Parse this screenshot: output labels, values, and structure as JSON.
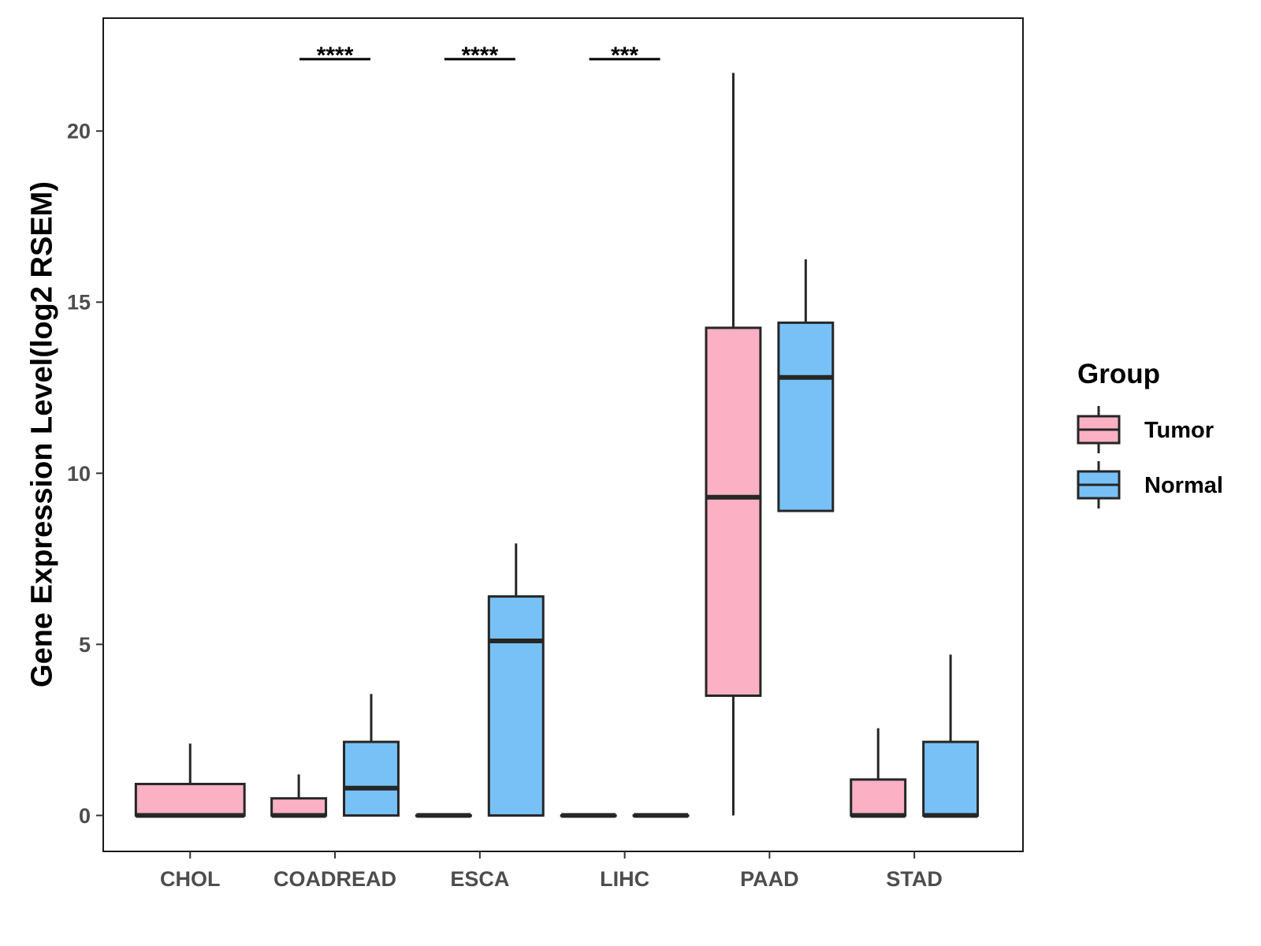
{
  "chart_data": {
    "type": "boxplot",
    "ylabel": "Gene Expression Level(log2 RSEM)",
    "xlabel": "",
    "ylim": [
      -1.05,
      23.3
    ],
    "yticks": [
      0,
      5,
      10,
      15,
      20
    ],
    "grid": false,
    "legend_title": "Group",
    "legend_position": "right",
    "categories": [
      "CHOL",
      "COADREAD",
      "ESCA",
      "LIHC",
      "PAAD",
      "STAD"
    ],
    "series": [
      {
        "name": "Tumor",
        "color": "#FBB1C3",
        "boxes": [
          {
            "category": "CHOL",
            "min": 0,
            "q1": 0,
            "median": 0,
            "q3": 0.92,
            "max": 2.1
          },
          {
            "category": "COADREAD",
            "min": 0,
            "q1": 0,
            "median": 0,
            "q3": 0.5,
            "max": 1.2
          },
          {
            "category": "ESCA",
            "min": 0,
            "q1": 0,
            "median": 0,
            "q3": 0,
            "max": 0
          },
          {
            "category": "LIHC",
            "min": 0,
            "q1": 0,
            "median": 0,
            "q3": 0,
            "max": 0
          },
          {
            "category": "PAAD",
            "min": 0,
            "q1": 3.5,
            "median": 9.3,
            "q3": 14.25,
            "max": 21.7
          },
          {
            "category": "STAD",
            "min": 0,
            "q1": 0,
            "median": 0,
            "q3": 1.05,
            "max": 2.55
          }
        ]
      },
      {
        "name": "Normal",
        "color": "#78C1F7",
        "boxes": [
          {
            "category": "CHOL"
          },
          {
            "category": "COADREAD",
            "min": 0,
            "q1": 0,
            "median": 0.8,
            "q3": 2.15,
            "max": 3.55
          },
          {
            "category": "ESCA",
            "min": 0,
            "q1": 0,
            "median": 5.1,
            "q3": 6.4,
            "max": 7.95
          },
          {
            "category": "LIHC",
            "min": 0,
            "q1": 0,
            "median": 0,
            "q3": 0,
            "max": 0
          },
          {
            "category": "PAAD",
            "min": 8.9,
            "q1": 8.9,
            "median": 12.8,
            "q3": 14.4,
            "max": 16.25
          },
          {
            "category": "STAD",
            "min": 0,
            "q1": 0,
            "median": 0,
            "q3": 2.15,
            "max": 4.7
          }
        ]
      }
    ],
    "significance": [
      {
        "category": "COADREAD",
        "label": "****"
      },
      {
        "category": "ESCA",
        "label": "****"
      },
      {
        "category": "LIHC",
        "label": "***"
      }
    ]
  }
}
